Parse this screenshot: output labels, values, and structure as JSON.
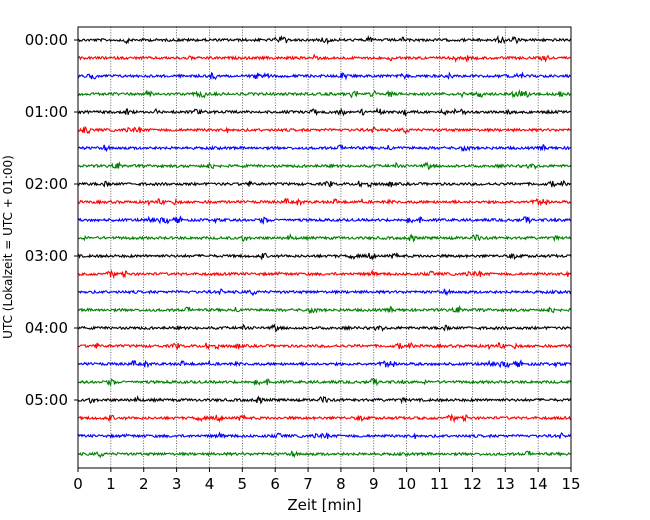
{
  "chart_data": {
    "type": "line",
    "title": "",
    "xlabel": "Zeit  [min]",
    "ylabel": "UTC (Lokalzeit = UTC + 01:00)",
    "xlim": [
      0,
      15
    ],
    "x_ticks": [
      "0",
      "1",
      "2",
      "3",
      "4",
      "5",
      "6",
      "7",
      "8",
      "9",
      "10",
      "11",
      "12",
      "13",
      "14",
      "15"
    ],
    "y_ticks": [
      "00:00",
      "01:00",
      "02:00",
      "03:00",
      "04:00",
      "05:00"
    ],
    "grid": "vertical dotted lines at each minute",
    "legend": "none",
    "traces_per_hour": 4,
    "trace_minutes": 15,
    "trace_colors": [
      "#000000",
      "#ff0000",
      "#0000ff",
      "#008000"
    ],
    "trace_start_times": [
      "00:00",
      "00:15",
      "00:30",
      "00:45",
      "01:00",
      "01:15",
      "01:30",
      "01:45",
      "02:00",
      "02:15",
      "02:30",
      "02:45",
      "03:00",
      "03:15",
      "03:30",
      "03:45",
      "04:00",
      "04:15",
      "04:30",
      "04:45",
      "05:00",
      "05:15",
      "05:30",
      "05:45"
    ]
  }
}
